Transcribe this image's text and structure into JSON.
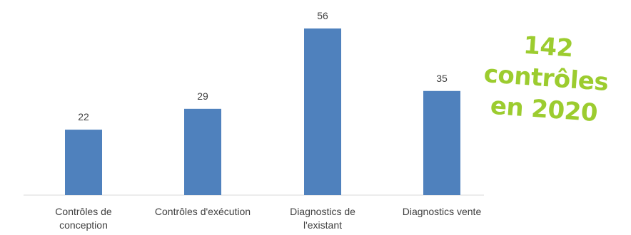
{
  "chart_data": {
    "type": "bar",
    "categories": [
      [
        "Contrôles de",
        "conception"
      ],
      [
        "Contrôles d'exécution"
      ],
      [
        "Diagnostics de",
        "l'existant"
      ],
      [
        "Diagnostics vente"
      ]
    ],
    "values": [
      22,
      29,
      56,
      35
    ],
    "title": "",
    "xlabel": "",
    "ylabel": "",
    "ylim": [
      0,
      60
    ],
    "grid": false,
    "legend": "none",
    "bar_color": "#4f81bd",
    "axis_color": "#d9d9d9"
  },
  "annotation": {
    "line1": "142 contrôles",
    "line2": "en 2020",
    "color": "#9ccc2f"
  }
}
